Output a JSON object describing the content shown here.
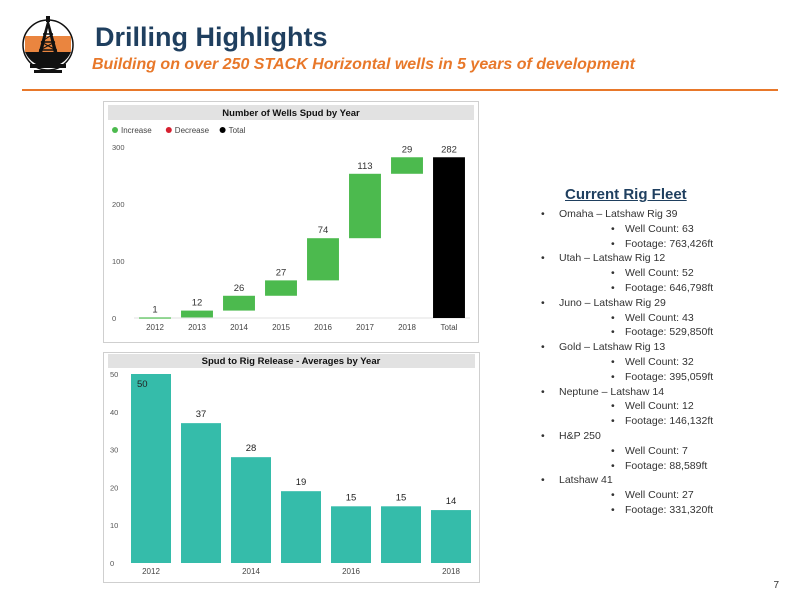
{
  "header": {
    "title": "Drilling Highlights",
    "subtitle": "Building on over 250 STACK Horizontal wells in 5 years of development"
  },
  "colors": {
    "title": "#1f3f5f",
    "accent": "#e8782a",
    "increase": "#4cba4e",
    "decrease": "#d62030",
    "total": "#000000",
    "bar_teal": "#35bcaa"
  },
  "chart_data": [
    {
      "type": "waterfall",
      "title": "Number of Wells Spud by Year",
      "legend": [
        "Increase",
        "Decrease",
        "Total"
      ],
      "legend_placement": "top-left",
      "categories": [
        "2012",
        "2013",
        "2014",
        "2015",
        "2016",
        "2017",
        "2018",
        "Total"
      ],
      "values": [
        1,
        12,
        26,
        27,
        74,
        113,
        29,
        282
      ],
      "kinds": [
        "increase",
        "increase",
        "increase",
        "increase",
        "increase",
        "increase",
        "increase",
        "total"
      ],
      "ylim": [
        0,
        300
      ],
      "yticks": [
        0,
        100,
        200,
        300
      ],
      "grid": false
    },
    {
      "type": "bar",
      "title": "Spud to Rig Release - Averages by Year",
      "categories": [
        "2012",
        "2013",
        "2014",
        "2015",
        "2016",
        "2017",
        "2018"
      ],
      "values": [
        50,
        37,
        28,
        19,
        15,
        15,
        14
      ],
      "xtick_labels_shown": [
        "2012",
        "2014",
        "2016",
        "2018"
      ],
      "ylim": [
        0,
        50
      ],
      "yticks": [
        0,
        10,
        20,
        30,
        40,
        50
      ],
      "grid": false
    }
  ],
  "fleet": {
    "heading": "Current Rig Fleet",
    "rigs": [
      {
        "name": "Omaha – Latshaw Rig 39",
        "details": [
          "Well Count: 63",
          "Footage: 763,426ft"
        ]
      },
      {
        "name": "Utah – Latshaw Rig 12",
        "details": [
          "Well Count: 52",
          "Footage: 646,798ft"
        ]
      },
      {
        "name": "Juno – Latshaw Rig 29",
        "details": [
          "Well Count: 43",
          "Footage: 529,850ft"
        ]
      },
      {
        "name": "Gold – Latshaw Rig 13",
        "details": [
          "Well Count: 32",
          "Footage: 395,059ft"
        ]
      },
      {
        "name": "Neptune – Latshaw 14",
        "details": [
          "Well Count: 12",
          "Footage: 146,132ft"
        ]
      },
      {
        "name": "H&P 250",
        "details": [
          "Well Count: 7",
          "Footage: 88,589ft"
        ]
      },
      {
        "name": "Latshaw 41",
        "details": [
          "Well Count: 27",
          "Footage: 331,320ft"
        ]
      }
    ]
  },
  "page_number": "7"
}
